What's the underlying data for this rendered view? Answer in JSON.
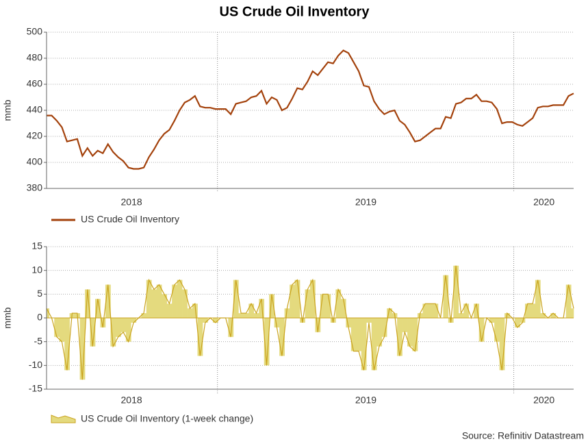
{
  "source": "Source: Refinitiv Datastream",
  "chart_data": [
    {
      "type": "line",
      "title": "US Crude Oil Inventory",
      "ylabel": "mmb",
      "series": [
        {
          "name": "US Crude Oil Inventory",
          "color": "#a3410b",
          "values": [
            436,
            436,
            432,
            427,
            416,
            417,
            418,
            405,
            411,
            405,
            409,
            407,
            414,
            408,
            404,
            401,
            396,
            395,
            395,
            396,
            404,
            410,
            417,
            422,
            425,
            432,
            440,
            446,
            448,
            451,
            443,
            442,
            442,
            441,
            441,
            441,
            437,
            445,
            446,
            447,
            450,
            451,
            455,
            445,
            450,
            448,
            440,
            442,
            449,
            457,
            456,
            462,
            470,
            467,
            472,
            477,
            476,
            482,
            486,
            484,
            477,
            470,
            459,
            458,
            447,
            441,
            437,
            439,
            440,
            432,
            429,
            423,
            416,
            417,
            420,
            423,
            426,
            426,
            435,
            434,
            445,
            446,
            449,
            449,
            452,
            447,
            447,
            446,
            441,
            430,
            431,
            431,
            429,
            428,
            431,
            434,
            442,
            443,
            443,
            444,
            444,
            444,
            451,
            453
          ]
        }
      ],
      "xlim": [
        0,
        103
      ],
      "xticks": [
        {
          "value": 16.6,
          "label": "2018"
        },
        {
          "value": 62.4,
          "label": "2019"
        },
        {
          "value": 97.2,
          "label": "2020"
        }
      ],
      "xgrid": [
        33.4,
        91.3
      ],
      "ylim": [
        380,
        500
      ],
      "yticks": [
        380,
        400,
        420,
        440,
        460,
        480,
        500
      ],
      "grid": true
    },
    {
      "type": "area",
      "ylabel": "mmb",
      "series": [
        {
          "name": "US Crude Oil Inventory (1-week change)",
          "color": "#e4da7e",
          "line_color": "#c9a21c",
          "values": [
            2,
            0,
            -4,
            -5,
            -11,
            1,
            1,
            -13,
            6,
            -6,
            4,
            -2,
            7,
            -6,
            -4,
            -3,
            -5,
            -1,
            0,
            1,
            8,
            6,
            7,
            5,
            3,
            7,
            8,
            6,
            2,
            3,
            -8,
            -1,
            0,
            -1,
            0,
            0,
            -4,
            8,
            1,
            1,
            3,
            1,
            4,
            -10,
            5,
            -2,
            -8,
            2,
            7,
            8,
            -1,
            6,
            8,
            -3,
            5,
            5,
            -1,
            6,
            4,
            -2,
            -7,
            -7,
            -11,
            -1,
            -11,
            -6,
            -4,
            2,
            1,
            -8,
            -3,
            -6,
            -7,
            1,
            3,
            3,
            3,
            0,
            9,
            -1,
            11,
            1,
            3,
            0,
            3,
            -5,
            0,
            -1,
            -5,
            -11,
            1,
            0,
            -2,
            -1,
            3,
            3,
            8,
            1,
            0,
            1,
            0,
            0,
            7,
            2
          ]
        }
      ],
      "xlim": [
        0,
        103
      ],
      "xticks": [
        {
          "value": 16.6,
          "label": "2018"
        },
        {
          "value": 62.4,
          "label": "2019"
        },
        {
          "value": 97.2,
          "label": "2020"
        }
      ],
      "xgrid": [
        33.4,
        91.3
      ],
      "ylim": [
        -15,
        15
      ],
      "yticks": [
        -15,
        -10,
        -5,
        0,
        5,
        10,
        15
      ],
      "grid": true
    }
  ]
}
